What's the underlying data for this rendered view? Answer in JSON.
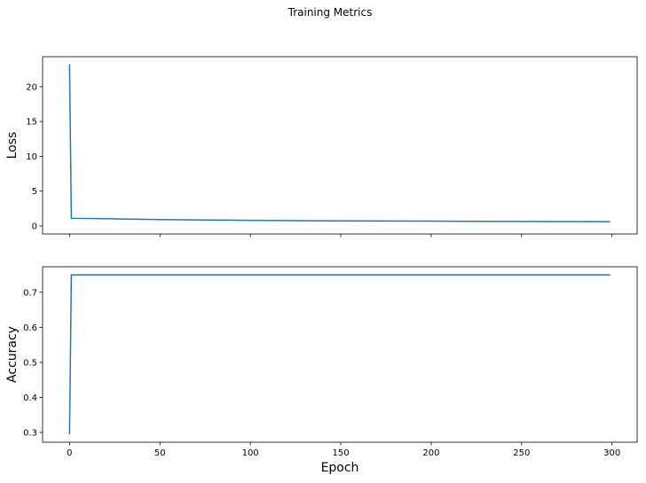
{
  "chart_data": {
    "type": "line",
    "title": "Training Metrics",
    "xlabel": "Epoch",
    "xlim": [
      -14.9,
      313.9
    ],
    "x_ticks": [
      0,
      50,
      100,
      150,
      200,
      250,
      300
    ],
    "x_tick_labels": [
      "0",
      "50",
      "100",
      "150",
      "200",
      "250",
      "300"
    ],
    "subplots": [
      {
        "name": "loss",
        "ylabel": "Loss",
        "ylim": [
          -1.15,
          24.3
        ],
        "y_ticks": [
          0,
          5,
          10,
          15,
          20
        ],
        "y_tick_labels": [
          "0",
          "5",
          "10",
          "15",
          "20"
        ],
        "show_x_tick_labels": false,
        "series": [
          {
            "name": "Loss",
            "color": "#1f77b4",
            "points": [
              [
                0,
                23.2
              ],
              [
                1,
                1.1
              ],
              [
                25,
                1.02
              ],
              [
                50,
                0.92
              ],
              [
                75,
                0.86
              ],
              [
                100,
                0.8
              ],
              [
                125,
                0.76
              ],
              [
                150,
                0.73
              ],
              [
                175,
                0.71
              ],
              [
                200,
                0.69
              ],
              [
                225,
                0.67
              ],
              [
                250,
                0.65
              ],
              [
                275,
                0.63
              ],
              [
                299,
                0.62
              ]
            ]
          }
        ]
      },
      {
        "name": "accuracy",
        "ylabel": "Accuracy",
        "ylim": [
          0.272,
          0.773
        ],
        "y_ticks": [
          0.3,
          0.4,
          0.5,
          0.6,
          0.7
        ],
        "y_tick_labels": [
          "0.3",
          "0.4",
          "0.5",
          "0.6",
          "0.7"
        ],
        "show_x_tick_labels": true,
        "series": [
          {
            "name": "Accuracy",
            "color": "#1f77b4",
            "points": [
              [
                0,
                0.295
              ],
              [
                1,
                0.75
              ],
              [
                299,
                0.75
              ]
            ]
          }
        ]
      }
    ]
  }
}
